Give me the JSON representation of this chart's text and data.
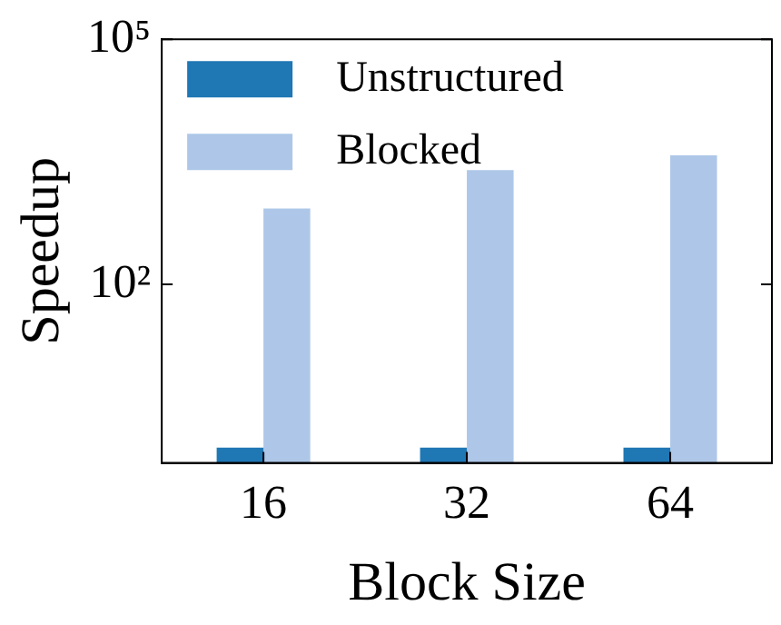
{
  "chart_data": {
    "type": "bar",
    "xlabel": "Block Size",
    "ylabel": "Speedup",
    "categories": [
      "16",
      "32",
      "64"
    ],
    "series": [
      {
        "name": "Unstructured",
        "color": "#1f77b4",
        "values": [
          1.0,
          1.0,
          1.0
        ]
      },
      {
        "name": "Blocked",
        "color": "#aec7e8",
        "values": [
          850,
          2500,
          3800
        ]
      }
    ],
    "log": "y",
    "ylim": [
      0.65,
      100000
    ],
    "yticks": [
      {
        "value": 100,
        "label": "10²"
      },
      {
        "value": 100000,
        "label": "10⁵"
      }
    ],
    "grid": false,
    "legend": "top left"
  }
}
